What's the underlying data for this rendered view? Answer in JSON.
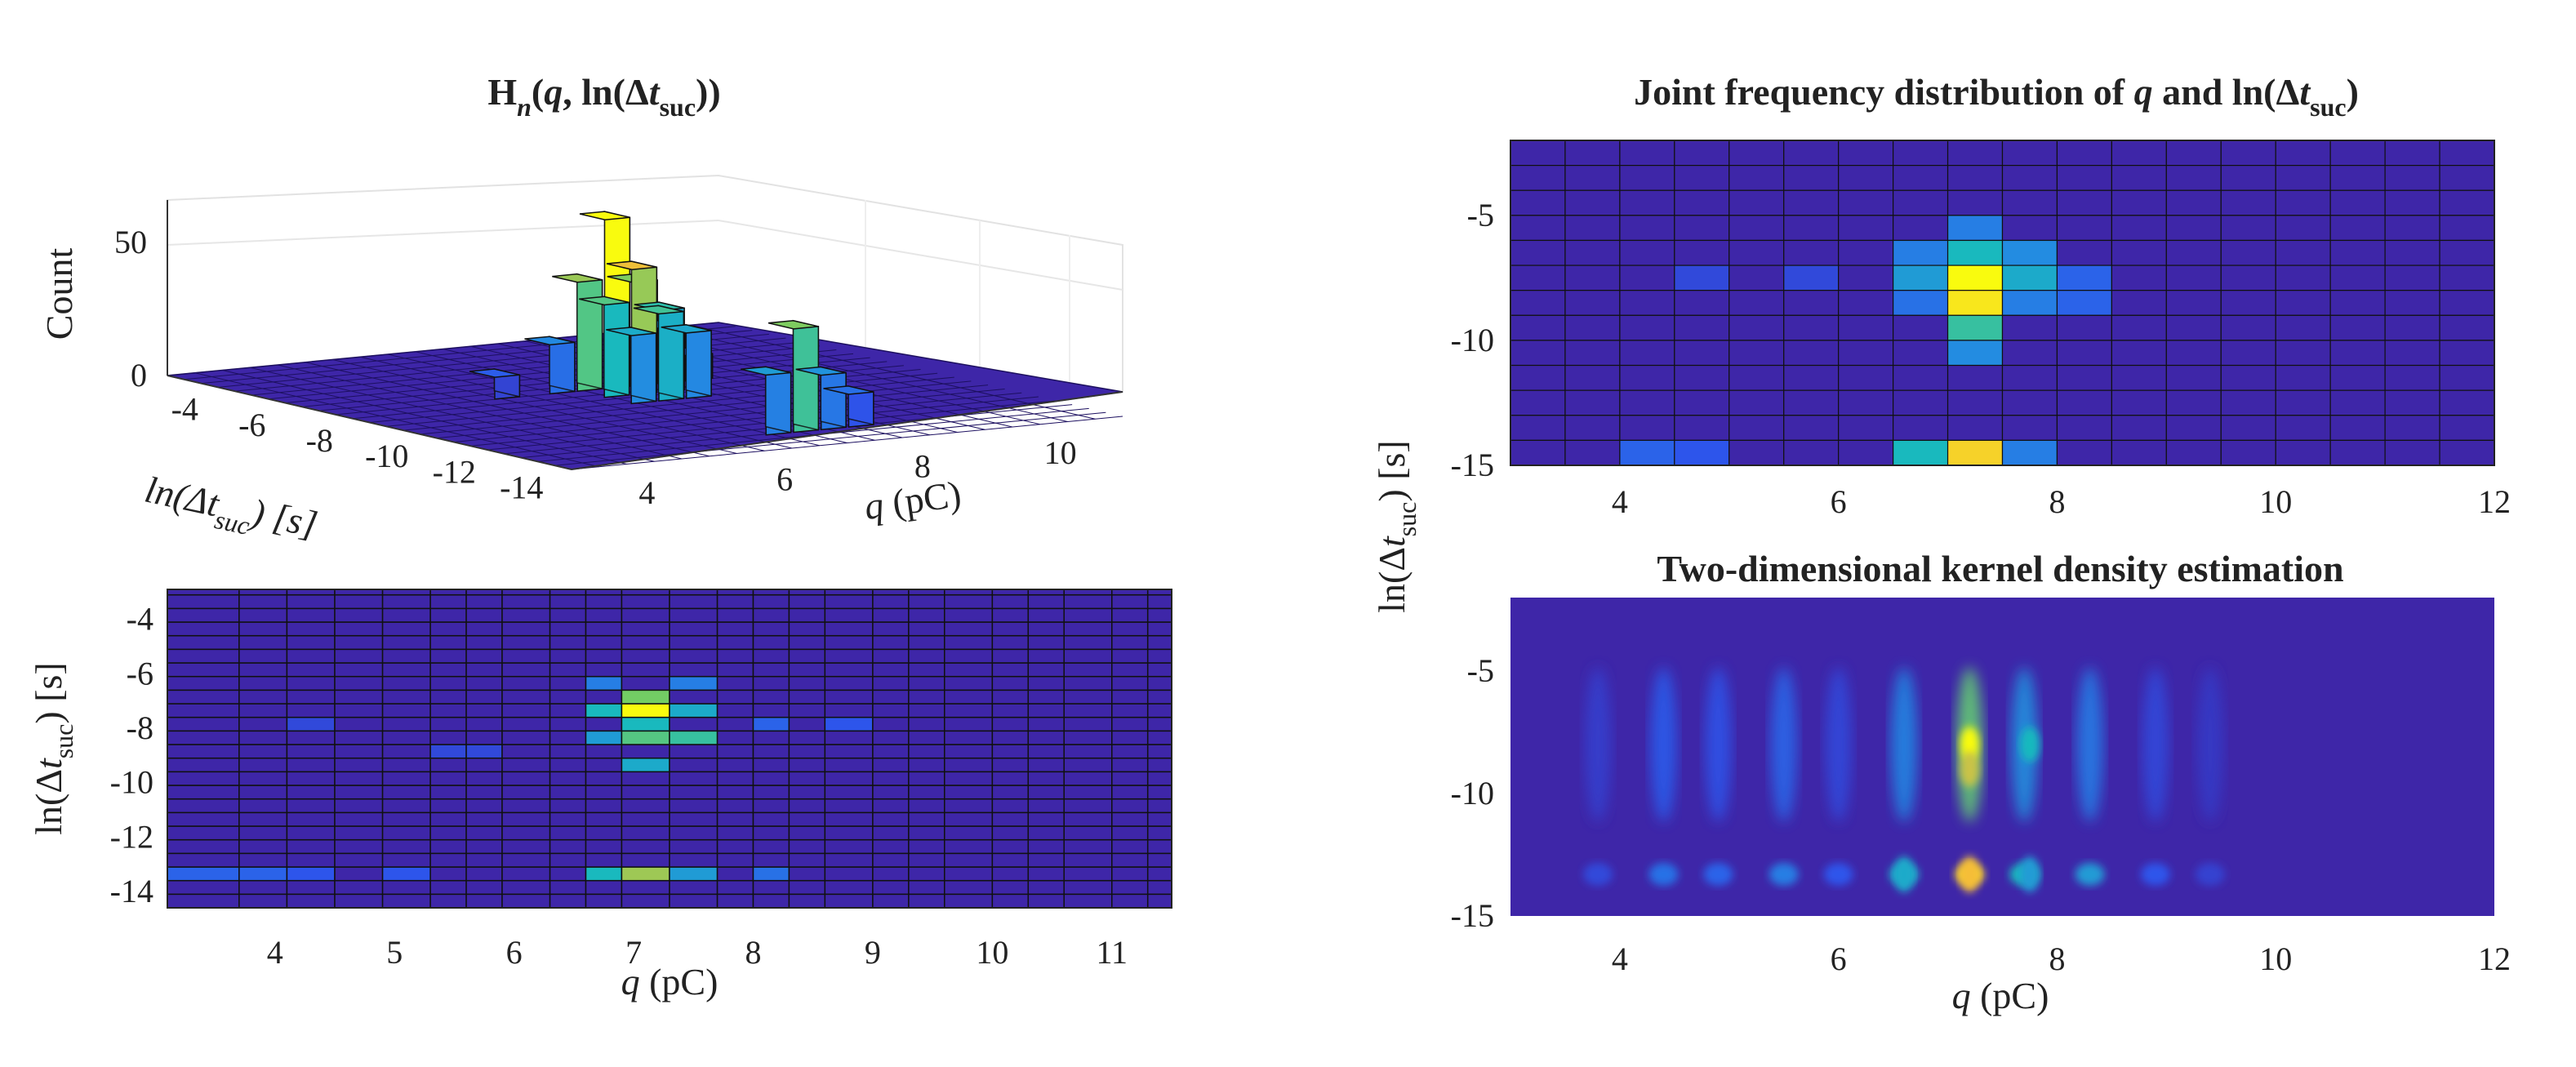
{
  "colors": {
    "low": "#3e26a8",
    "mid1": "#2f7ff5",
    "mid2": "#1ec0c4",
    "mid3": "#7fd060",
    "high": "#f9c832",
    "peak": "#f9fb0e"
  },
  "chart_data": [
    {
      "id": "histogram-3d",
      "type": "bar3d",
      "title": {
        "main": "H",
        "sub": "n",
        "args_open": "(",
        "q": "q",
        "comma": ", ln(Δ",
        "t": "t",
        "suc": "suc",
        "close": "))"
      },
      "zlabel": "Count",
      "zticks": [
        "0",
        "50"
      ],
      "xlabel": {
        "var": "q",
        "unit": " (pC)"
      },
      "xticks": [
        "4",
        "6",
        "8",
        "10"
      ],
      "ylabel": {
        "pre": "ln(Δ",
        "t": "t",
        "suc": "suc",
        "post": ") [s]"
      },
      "yticks": [
        "-4",
        "-6",
        "-8",
        "-10",
        "-12",
        "-14"
      ],
      "bars": [
        {
          "q": 7.1,
          "lt": -7.6,
          "count": 62
        },
        {
          "q": 7.1,
          "lt": -8.4,
          "count": 46
        },
        {
          "q": 6.7,
          "lt": -7.6,
          "count": 40
        },
        {
          "q": 7.5,
          "lt": -7.6,
          "count": 38
        },
        {
          "q": 6.7,
          "lt": -8.4,
          "count": 34
        },
        {
          "q": 7.5,
          "lt": -8.4,
          "count": 30
        },
        {
          "q": 7.1,
          "lt": -9.2,
          "count": 32
        },
        {
          "q": 6.7,
          "lt": -9.2,
          "count": 25
        },
        {
          "q": 7.5,
          "lt": -9.2,
          "count": 24
        },
        {
          "q": 6.3,
          "lt": -7.6,
          "count": 18
        },
        {
          "q": 7.9,
          "lt": -7.6,
          "count": 20
        },
        {
          "q": 7.1,
          "lt": -13.2,
          "count": 38
        },
        {
          "q": 6.7,
          "lt": -13.2,
          "count": 22
        },
        {
          "q": 7.5,
          "lt": -13.2,
          "count": 20
        },
        {
          "q": 7.9,
          "lt": -13.2,
          "count": 12
        },
        {
          "q": 5.5,
          "lt": -7.6,
          "count": 8
        },
        {
          "q": 8.3,
          "lt": -7.6,
          "count": 9
        }
      ]
    },
    {
      "id": "histogram-2d-view",
      "type": "heatmap",
      "xlabel": {
        "var": "q",
        "unit": " (pC)"
      },
      "xticks": [
        "4",
        "5",
        "6",
        "7",
        "8",
        "9",
        "10",
        "11"
      ],
      "xlim": [
        3.1,
        11.5
      ],
      "ylabel": {
        "pre": "ln(Δ",
        "t": "t",
        "suc": "suc",
        "post": ") [s]"
      },
      "yticks": [
        "-4",
        "-6",
        "-8",
        "-10",
        "-12",
        "-14"
      ],
      "ylim": [
        -14.6,
        -2.9
      ],
      "x_edges": [
        3.1,
        3.7,
        4.1,
        4.5,
        4.9,
        5.3,
        5.6,
        5.9,
        6.3,
        6.6,
        6.9,
        7.3,
        7.7,
        8.0,
        8.3,
        8.6,
        9.0,
        9.3,
        9.6,
        10.0,
        10.3,
        10.6,
        11.0,
        11.3,
        11.5
      ],
      "y_edges": [
        -14.6,
        -14.1,
        -13.6,
        -13.1,
        -12.6,
        -12.1,
        -11.6,
        -11.1,
        -10.6,
        -10.1,
        -9.6,
        -9.1,
        -8.6,
        -8.1,
        -7.6,
        -7.1,
        -6.6,
        -6.1,
        -5.6,
        -5.1,
        -4.6,
        -4.1,
        -3.6,
        -3.1,
        -2.9
      ],
      "hot_cells": [
        {
          "q": 7.1,
          "lt": -7.3,
          "v": 1.0
        },
        {
          "q": 7.1,
          "lt": -6.9,
          "v": 0.7
        },
        {
          "q": 7.1,
          "lt": -8.0,
          "v": 0.55
        },
        {
          "q": 7.1,
          "lt": -8.4,
          "v": 0.65
        },
        {
          "q": 7.1,
          "lt": -9.2,
          "v": 0.5
        },
        {
          "q": 6.8,
          "lt": -7.3,
          "v": 0.55
        },
        {
          "q": 6.8,
          "lt": -8.4,
          "v": 0.45
        },
        {
          "q": 7.5,
          "lt": -7.3,
          "v": 0.5
        },
        {
          "q": 7.5,
          "lt": -8.4,
          "v": 0.6
        },
        {
          "q": 6.8,
          "lt": -6.4,
          "v": 0.35
        },
        {
          "q": 7.5,
          "lt": -6.4,
          "v": 0.35
        },
        {
          "q": 7.1,
          "lt": -13.4,
          "v": 0.75
        },
        {
          "q": 6.8,
          "lt": -13.4,
          "v": 0.55
        },
        {
          "q": 7.5,
          "lt": -13.4,
          "v": 0.45
        },
        {
          "q": 8.1,
          "lt": -13.4,
          "v": 0.3
        },
        {
          "q": 3.7,
          "lt": -13.4,
          "v": 0.25
        },
        {
          "q": 4.4,
          "lt": -13.4,
          "v": 0.2
        },
        {
          "q": 5.1,
          "lt": -13.4,
          "v": 0.2
        },
        {
          "q": 8.1,
          "lt": -7.8,
          "v": 0.25
        },
        {
          "q": 8.8,
          "lt": -7.8,
          "v": 0.2
        },
        {
          "q": 5.6,
          "lt": -8.8,
          "v": 0.15
        },
        {
          "q": 4.4,
          "lt": -7.8,
          "v": 0.15
        }
      ]
    },
    {
      "id": "joint-frequency",
      "type": "heatmap",
      "title": {
        "pre": "Joint frequency distribution of ",
        "q": "q",
        "mid": " and ln(Δ",
        "t": "t",
        "suc": "suc",
        "post": ")"
      },
      "xticks": [
        "4",
        "6",
        "8",
        "10",
        "12"
      ],
      "xlim": [
        3,
        12
      ],
      "yticks": [
        "-5",
        "-10",
        "-15"
      ],
      "ylim": [
        -15,
        -2
      ],
      "ncols": 18,
      "nrows": 13,
      "cells": [
        {
          "col": 8,
          "row": 4,
          "v": 0.55
        },
        {
          "col": 8,
          "row": 5,
          "v": 1.0
        },
        {
          "col": 8,
          "row": 6,
          "v": 0.95
        },
        {
          "col": 8,
          "row": 7,
          "v": 0.6
        },
        {
          "col": 8,
          "row": 8,
          "v": 0.4
        },
        {
          "col": 8,
          "row": 3,
          "v": 0.35
        },
        {
          "col": 7,
          "row": 4,
          "v": 0.35
        },
        {
          "col": 7,
          "row": 5,
          "v": 0.45
        },
        {
          "col": 7,
          "row": 6,
          "v": 0.3
        },
        {
          "col": 9,
          "row": 4,
          "v": 0.4
        },
        {
          "col": 9,
          "row": 5,
          "v": 0.5
        },
        {
          "col": 9,
          "row": 6,
          "v": 0.35
        },
        {
          "col": 10,
          "row": 5,
          "v": 0.25
        },
        {
          "col": 10,
          "row": 6,
          "v": 0.25
        },
        {
          "col": 8,
          "row": 12,
          "v": 0.9
        },
        {
          "col": 7,
          "row": 12,
          "v": 0.55
        },
        {
          "col": 9,
          "row": 12,
          "v": 0.35
        },
        {
          "col": 2,
          "row": 12,
          "v": 0.25
        },
        {
          "col": 3,
          "row": 12,
          "v": 0.2
        },
        {
          "col": 3,
          "row": 5,
          "v": 0.15
        },
        {
          "col": 5,
          "row": 5,
          "v": 0.15
        }
      ]
    },
    {
      "id": "kernel-density",
      "type": "heatmap",
      "title": "Two-dimensional kernel density estimation",
      "xlabel": {
        "var": "q",
        "unit": " (pC)"
      },
      "xticks": [
        "4",
        "6",
        "8",
        "10",
        "12"
      ],
      "xlim": [
        3,
        12
      ],
      "yticks": [
        "-5",
        "-10",
        "-15"
      ],
      "ylim": [
        -15,
        -2
      ],
      "shared_ylabel": {
        "pre": "ln(Δ",
        "t": "t",
        "suc": "suc",
        "post": ") [s]"
      },
      "streaks": [
        {
          "q": 3.8,
          "v": 0.15
        },
        {
          "q": 4.4,
          "v": 0.3
        },
        {
          "q": 4.9,
          "v": 0.25
        },
        {
          "q": 5.5,
          "v": 0.35
        },
        {
          "q": 6.0,
          "v": 0.2
        },
        {
          "q": 6.6,
          "v": 0.5
        },
        {
          "q": 7.2,
          "v": 0.9
        },
        {
          "q": 7.7,
          "v": 0.55
        },
        {
          "q": 8.3,
          "v": 0.45
        },
        {
          "q": 8.9,
          "v": 0.2
        },
        {
          "q": 9.4,
          "v": 0.12
        }
      ],
      "bottom_row_lt": -13.3,
      "hotspots": [
        {
          "q": 7.2,
          "lt": -8.0,
          "v": 1.0
        },
        {
          "q": 7.2,
          "lt": -9.0,
          "v": 0.8
        },
        {
          "q": 7.2,
          "lt": -13.3,
          "v": 0.85
        },
        {
          "q": 6.6,
          "lt": -13.3,
          "v": 0.5
        },
        {
          "q": 7.75,
          "lt": -13.3,
          "v": 0.45
        },
        {
          "q": 7.75,
          "lt": -8.0,
          "v": 0.55
        }
      ]
    }
  ]
}
